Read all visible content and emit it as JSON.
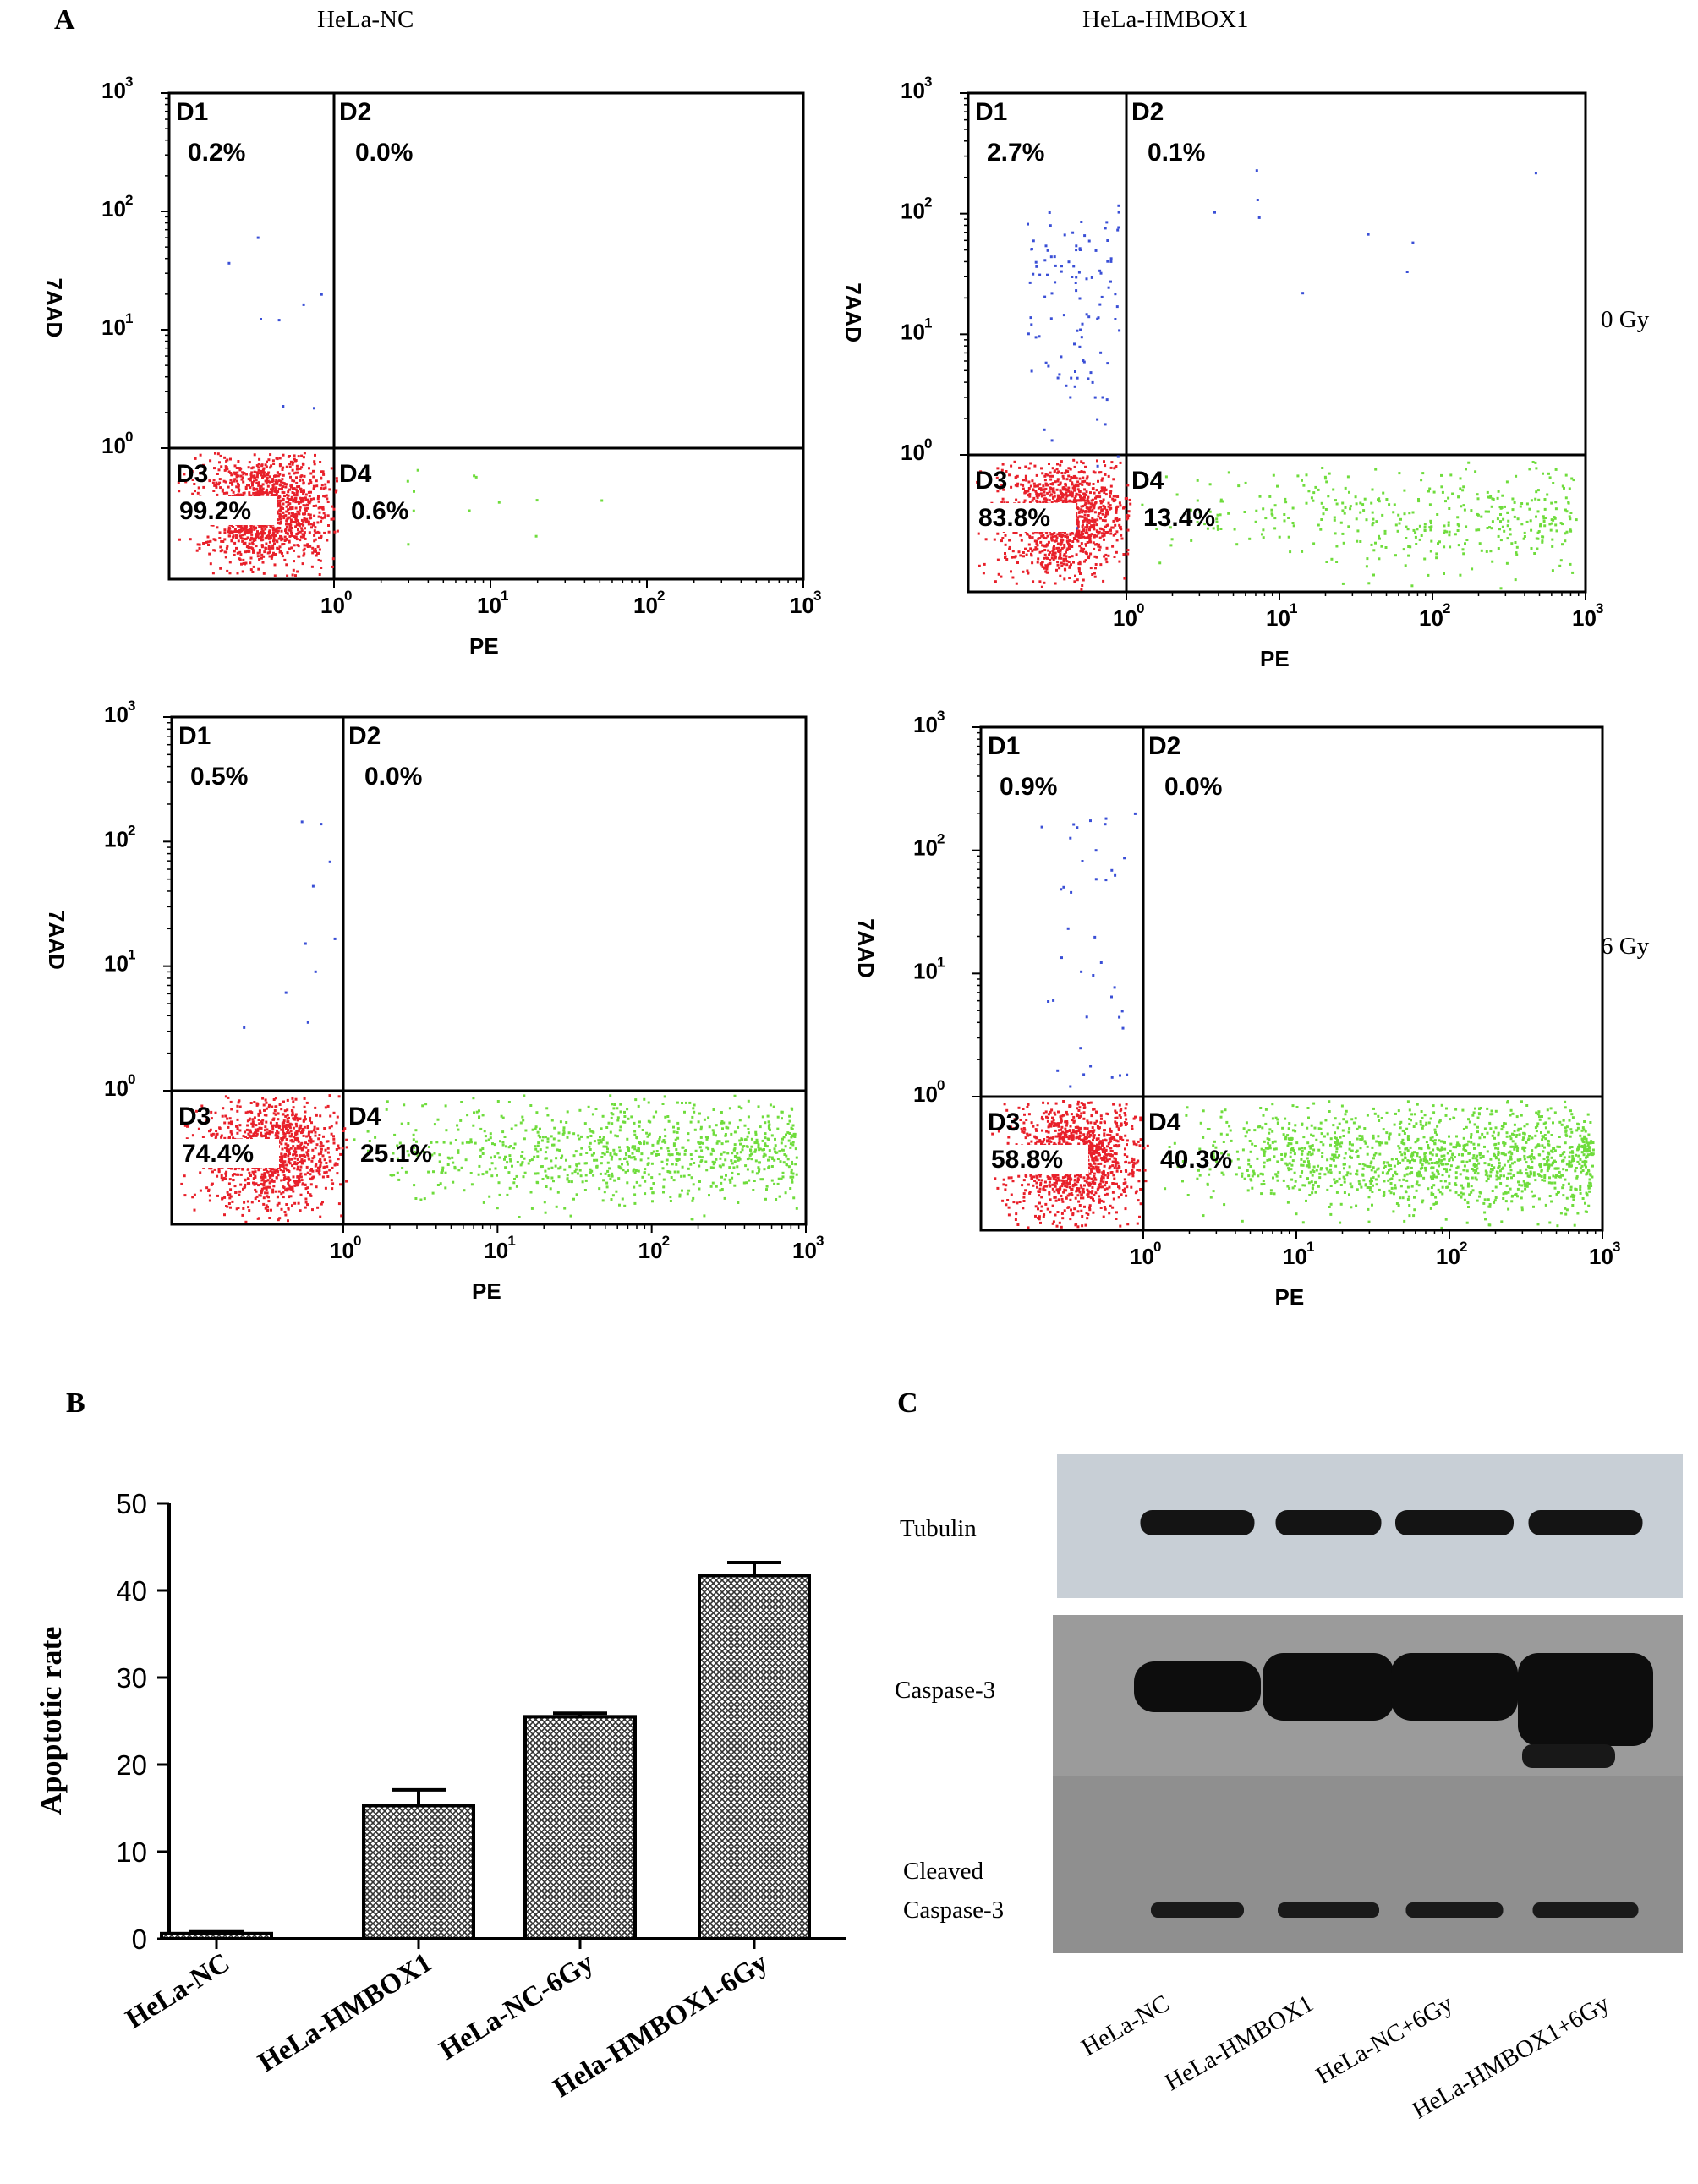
{
  "panels": {
    "a_label": "A",
    "b_label": "B",
    "c_label": "C",
    "col_titles": [
      "HeLa-NC",
      "HeLa-HMBOX1"
    ],
    "row_labels": [
      "0 Gy",
      "6 Gy"
    ]
  },
  "flow_axes": {
    "x_label": "PE",
    "y_label": "7AAD",
    "x_ticks": [
      "10",
      "10",
      "10",
      "10"
    ],
    "x_tick_exps": [
      "0",
      "1",
      "2",
      "3"
    ],
    "y_ticks": [
      "10",
      "10",
      "10",
      "10"
    ],
    "y_tick_exps": [
      "0",
      "1",
      "2",
      "3"
    ]
  },
  "chart_data": [
    {
      "type": "scatter",
      "title": "HeLa-NC",
      "row": "0 Gy",
      "xlabel": "PE",
      "ylabel": "7AAD",
      "xscale": "log",
      "yscale": "log",
      "quadrants": [
        {
          "name": "D1",
          "value": "0.2%"
        },
        {
          "name": "D2",
          "value": "0.0%"
        },
        {
          "name": "D3",
          "value": "99.2%"
        },
        {
          "name": "D4",
          "value": "0.6%"
        }
      ],
      "colors": {
        "D1": "#3a4fd6",
        "D3": "#e8202a",
        "D4": "#6fdc3c"
      }
    },
    {
      "type": "scatter",
      "title": "HeLa-HMBOX1",
      "row": "0 Gy",
      "xlabel": "PE",
      "ylabel": "7AAD",
      "xscale": "log",
      "yscale": "log",
      "quadrants": [
        {
          "name": "D1",
          "value": "2.7%"
        },
        {
          "name": "D2",
          "value": "0.1%"
        },
        {
          "name": "D3",
          "value": "83.8%"
        },
        {
          "name": "D4",
          "value": "13.4%"
        }
      ],
      "colors": {
        "D1": "#3a4fd6",
        "D3": "#e8202a",
        "D4": "#6fdc3c"
      }
    },
    {
      "type": "scatter",
      "title": "HeLa-NC",
      "row": "6 Gy",
      "xlabel": "PE",
      "ylabel": "7AAD",
      "xscale": "log",
      "yscale": "log",
      "quadrants": [
        {
          "name": "D1",
          "value": "0.5%"
        },
        {
          "name": "D2",
          "value": "0.0%"
        },
        {
          "name": "D3",
          "value": "74.4%"
        },
        {
          "name": "D4",
          "value": "25.1%"
        }
      ],
      "colors": {
        "D1": "#3a4fd6",
        "D3": "#e8202a",
        "D4": "#6fdc3c"
      }
    },
    {
      "type": "scatter",
      "title": "HeLa-HMBOX1",
      "row": "6 Gy",
      "xlabel": "PE",
      "ylabel": "7AAD",
      "xscale": "log",
      "yscale": "log",
      "quadrants": [
        {
          "name": "D1",
          "value": "0.9%"
        },
        {
          "name": "D2",
          "value": "0.0%"
        },
        {
          "name": "D3",
          "value": "58.8%"
        },
        {
          "name": "D4",
          "value": "40.3%"
        }
      ],
      "colors": {
        "D1": "#3a4fd6",
        "D3": "#e8202a",
        "D4": "#6fdc3c"
      }
    },
    {
      "type": "bar",
      "ylabel": "Apoptotic rate",
      "ylim": [
        0,
        50
      ],
      "yticks": [
        "0",
        "10",
        "20",
        "30",
        "40",
        "50"
      ],
      "categories": [
        "HeLa-NC",
        "HeLa-HMBOX1",
        "HeLa-NC-6Gy",
        "Hela-HMBOX1-6Gy"
      ],
      "values": [
        0.6,
        15.3,
        25.5,
        41.7
      ],
      "errors": [
        0.2,
        1.8,
        0.4,
        1.5
      ],
      "fill": "crosshatch"
    },
    {
      "type": "table",
      "kind": "western-blot",
      "rows": [
        "Tubulin",
        "Caspase-3",
        "Cleaved Caspase-3"
      ],
      "row_label_lines": [
        [
          "Tubulin"
        ],
        [
          "Caspase-3"
        ],
        [
          "Cleaved",
          "Caspase-3"
        ]
      ],
      "lanes": [
        "HeLa-NC",
        "HeLa-HMBOX1",
        "HeLa-NC+6Gy",
        "HeLa-HMBOX1+6Gy"
      ]
    }
  ]
}
